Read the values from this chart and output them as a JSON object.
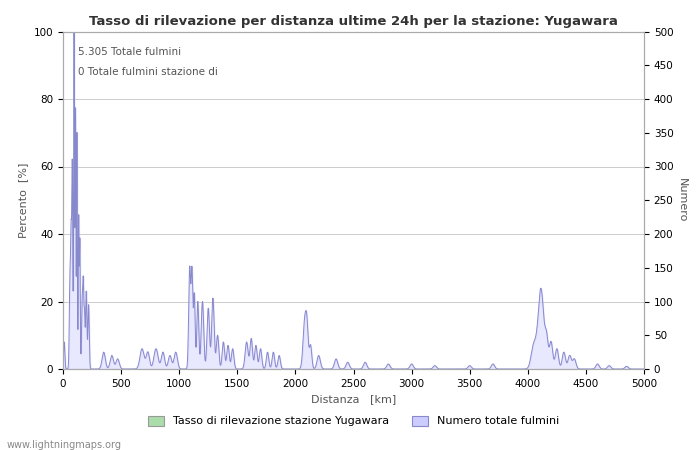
{
  "title": "Tasso di rilevazione per distanza ultime 24h per la stazione: Yugawara",
  "xlabel": "Distanza   [km]",
  "ylabel_left": "Percento  [%]",
  "ylabel_right": "Numero",
  "annotation_line1": "5.305 Totale fulmini",
  "annotation_line2": "0 Totale fulmini stazione di",
  "legend_label1": "Tasso di rilevazione stazione Yugawara",
  "legend_label2": "Numero totale fulmini",
  "watermark": "www.lightningmaps.org",
  "xlim": [
    0,
    5000
  ],
  "ylim_left": [
    0,
    100
  ],
  "ylim_right": [
    0,
    500
  ],
  "xticks": [
    0,
    500,
    1000,
    1500,
    2000,
    2500,
    3000,
    3500,
    4000,
    4500,
    5000
  ],
  "yticks_left": [
    0,
    20,
    40,
    60,
    80,
    100
  ],
  "yticks_right": [
    0,
    50,
    100,
    150,
    200,
    250,
    300,
    350,
    400,
    450,
    500
  ],
  "line_color": "#8888cc",
  "fill_color": "#ccccff",
  "green_patch_color": "#aaddaa",
  "bg_color": "#ffffff",
  "grid_color": "#cccccc",
  "title_color": "#333333",
  "label_color": "#555555"
}
